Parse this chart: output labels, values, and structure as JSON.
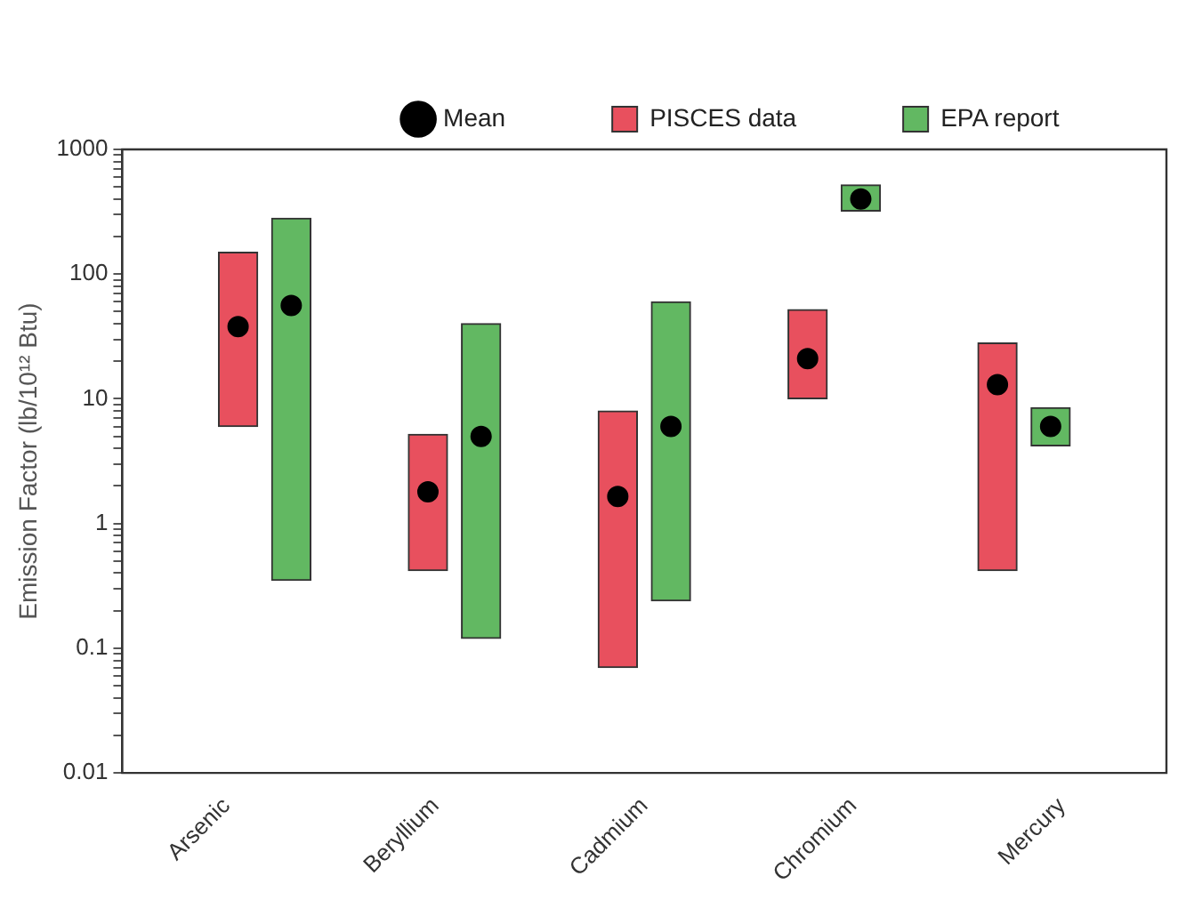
{
  "chart_data": {
    "type": "bar",
    "ylabel": "Emission Factor (lb/10¹² Btu)",
    "categories": [
      "Arsenic",
      "Beryllium",
      "Cadmium",
      "Chromium",
      "Mercury"
    ],
    "log": true,
    "ylim": [
      0.01,
      1000
    ],
    "yticks": [
      0.01,
      {
        "value": 0.02,
        "label": null
      },
      {
        "value": 0.03,
        "label": null
      },
      {
        "value": 0.04,
        "label": null
      },
      {
        "value": 0.05,
        "label": null
      },
      {
        "value": 0.06,
        "label": null
      },
      {
        "value": 0.07,
        "label": null
      },
      {
        "value": 0.08,
        "label": null
      },
      {
        "value": 0.09,
        "label": null
      },
      0.1,
      {
        "value": 0.2,
        "label": null
      },
      {
        "value": 0.3,
        "label": null
      },
      {
        "value": 0.4,
        "label": null
      },
      {
        "value": 0.5,
        "label": null
      },
      {
        "value": 0.6,
        "label": null
      },
      {
        "value": 0.7,
        "label": null
      },
      {
        "value": 0.8,
        "label": null
      },
      {
        "value": 0.9,
        "label": null
      },
      1,
      {
        "value": 2,
        "label": null
      },
      {
        "value": 3,
        "label": null
      },
      {
        "value": 4,
        "label": null
      },
      {
        "value": 5,
        "label": null
      },
      {
        "value": 6,
        "label": null
      },
      {
        "value": 7,
        "label": null
      },
      {
        "value": 8,
        "label": null
      },
      {
        "value": 9,
        "label": null
      },
      10,
      {
        "value": 20,
        "label": null
      },
      {
        "value": 30,
        "label": null
      },
      {
        "value": 40,
        "label": null
      },
      {
        "value": 50,
        "label": null
      },
      {
        "value": 60,
        "label": null
      },
      {
        "value": 70,
        "label": null
      },
      {
        "value": 80,
        "label": null
      },
      {
        "value": 90,
        "label": null
      },
      100,
      {
        "value": 200,
        "label": null
      },
      {
        "value": 300,
        "label": null
      },
      {
        "value": 400,
        "label": null
      },
      {
        "value": 500,
        "label": null
      },
      {
        "value": 600,
        "label": null
      },
      {
        "value": 700,
        "label": null
      },
      {
        "value": 800,
        "label": null
      },
      {
        "value": 900,
        "label": null
      },
      1000
    ],
    "legend": "top",
    "series": [
      {
        "name": "PISCES data",
        "color": "#e8505e",
        "base": [
          6,
          0.42,
          0.07,
          10,
          0.42
        ],
        "values": [
          144,
          4.78,
          7.93,
          42,
          27.58
        ]
      },
      {
        "name": "EPA report",
        "color": "#62b862",
        "base": [
          0.35,
          0.12,
          0.24,
          320,
          4.2
        ],
        "values": [
          279.65,
          39.88,
          59.76,
          200,
          4.3
        ]
      },
      {
        "name": "Mean",
        "type": "scatter",
        "color": "#000000",
        "marker": "circle",
        "x": [
          "Arsenic",
          "Beryllium",
          "Cadmium",
          "Chromium",
          "Mercury",
          "Arsenic",
          "Beryllium",
          "Cadmium",
          "Chromium",
          "Mercury"
        ],
        "values": [
          38,
          1.8,
          1.65,
          21,
          13,
          56,
          5,
          6,
          400,
          6
        ]
      }
    ]
  }
}
